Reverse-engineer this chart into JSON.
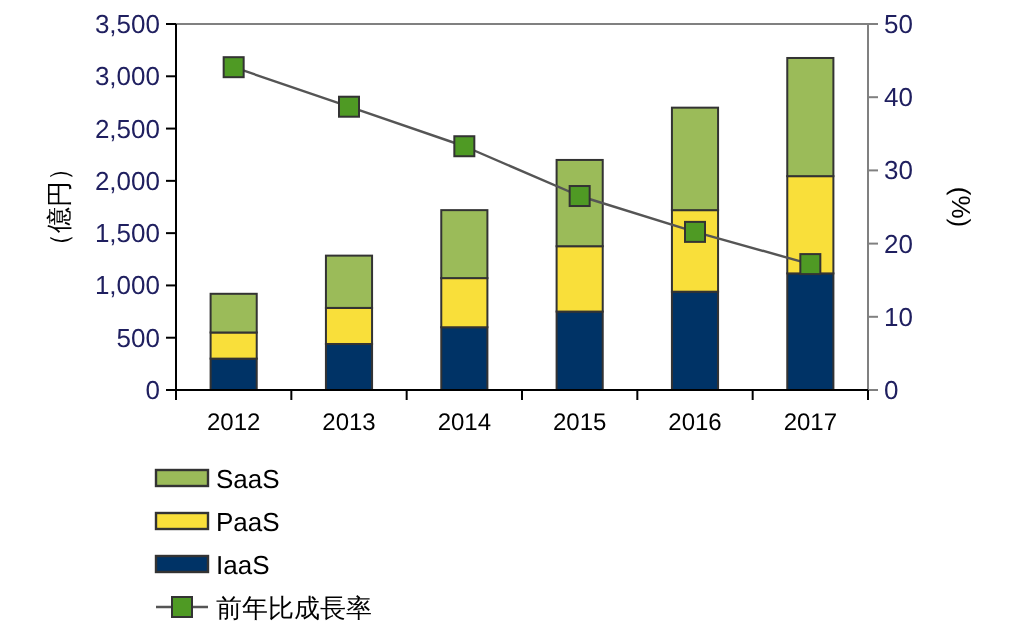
{
  "chart_data": {
    "type": "bar",
    "stacked": true,
    "categories": [
      "2012",
      "2013",
      "2014",
      "2015",
      "2016",
      "2017"
    ],
    "series": [
      {
        "name": "IaaS",
        "color": "#003366",
        "values": [
          300,
          440,
          600,
          750,
          940,
          1115
        ]
      },
      {
        "name": "PaaS",
        "color": "#f9df3a",
        "values": [
          250,
          345,
          470,
          625,
          780,
          930
        ]
      },
      {
        "name": "SaaS",
        "color": "#9bbb59",
        "values": [
          370,
          500,
          650,
          825,
          980,
          1130
        ]
      },
      {
        "name": "前年比成長率",
        "type": "line",
        "axis": "y2",
        "color": "#4f9a24",
        "marker": "square",
        "values": [
          44.1,
          38.7,
          33.3,
          26.5,
          21.6,
          17.2
        ]
      }
    ],
    "ylabel": "（億円）",
    "y2label": "(%)",
    "ylim": [
      0,
      3500
    ],
    "yticks": [
      {
        "value": 0,
        "label": "0"
      },
      {
        "value": 500,
        "label": "500"
      },
      {
        "value": 1000,
        "label": "1,000"
      },
      {
        "value": 1500,
        "label": "1,500"
      },
      {
        "value": 2000,
        "label": "2,000"
      },
      {
        "value": 2500,
        "label": "2,500"
      },
      {
        "value": 3000,
        "label": "3,000"
      },
      {
        "value": 3500,
        "label": "3,500"
      }
    ],
    "y2lim": [
      0,
      50
    ],
    "y2ticks": [
      0,
      10,
      20,
      30,
      40,
      50
    ],
    "grid": false,
    "legend": "bottom left"
  }
}
